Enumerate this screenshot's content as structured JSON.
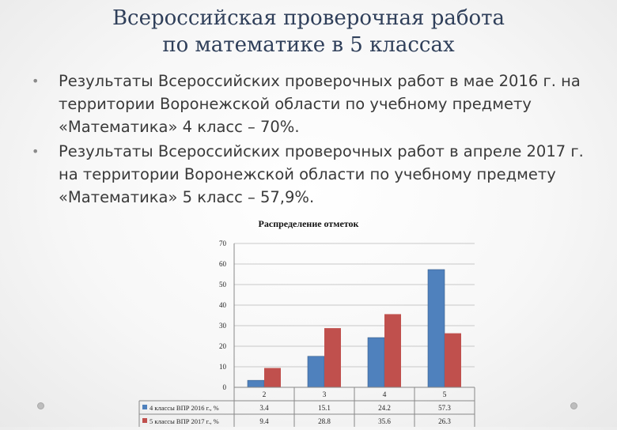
{
  "slide": {
    "title_line1": "Всероссийская проверочная работа",
    "title_line2": "по математике в 5 классах",
    "bullets": [
      "Результаты Всероссийских проверочных работ в мае 2016 г. на территории Воронежской области по учебному предмету «Математика» 4 класс – 70%.",
      "Результаты Всероссийских проверочных работ в апреле 2017 г. на территории Воронежской области по учебному предмету «Математика» 5 класс – 57,9%."
    ]
  },
  "chart_data": {
    "type": "bar",
    "title": "Распределение отметок",
    "categories": [
      "2",
      "3",
      "4",
      "5"
    ],
    "series": [
      {
        "name": "4 классы ВПР 2016 г., %",
        "values": [
          3.4,
          15.1,
          24.2,
          57.3
        ],
        "color": "#4f81bd"
      },
      {
        "name": "5 классы ВПР 2017 г., %",
        "values": [
          9.4,
          28.8,
          35.6,
          26.3
        ],
        "color": "#c0504d"
      }
    ],
    "value_labels": [
      [
        "3.4",
        "15.1",
        "24.2",
        "57.3"
      ],
      [
        "9.4",
        "28.8",
        "35.6",
        "26.3"
      ]
    ],
    "y_ticks": [
      "0",
      "10",
      "20",
      "30",
      "40",
      "50",
      "60",
      "70"
    ],
    "ylim": [
      0,
      70
    ],
    "grid": true,
    "legend": "data-table-below"
  },
  "colors": {
    "title": "#2f3f5a",
    "text": "#3a3a3a",
    "grid": "#c8c8c8"
  }
}
